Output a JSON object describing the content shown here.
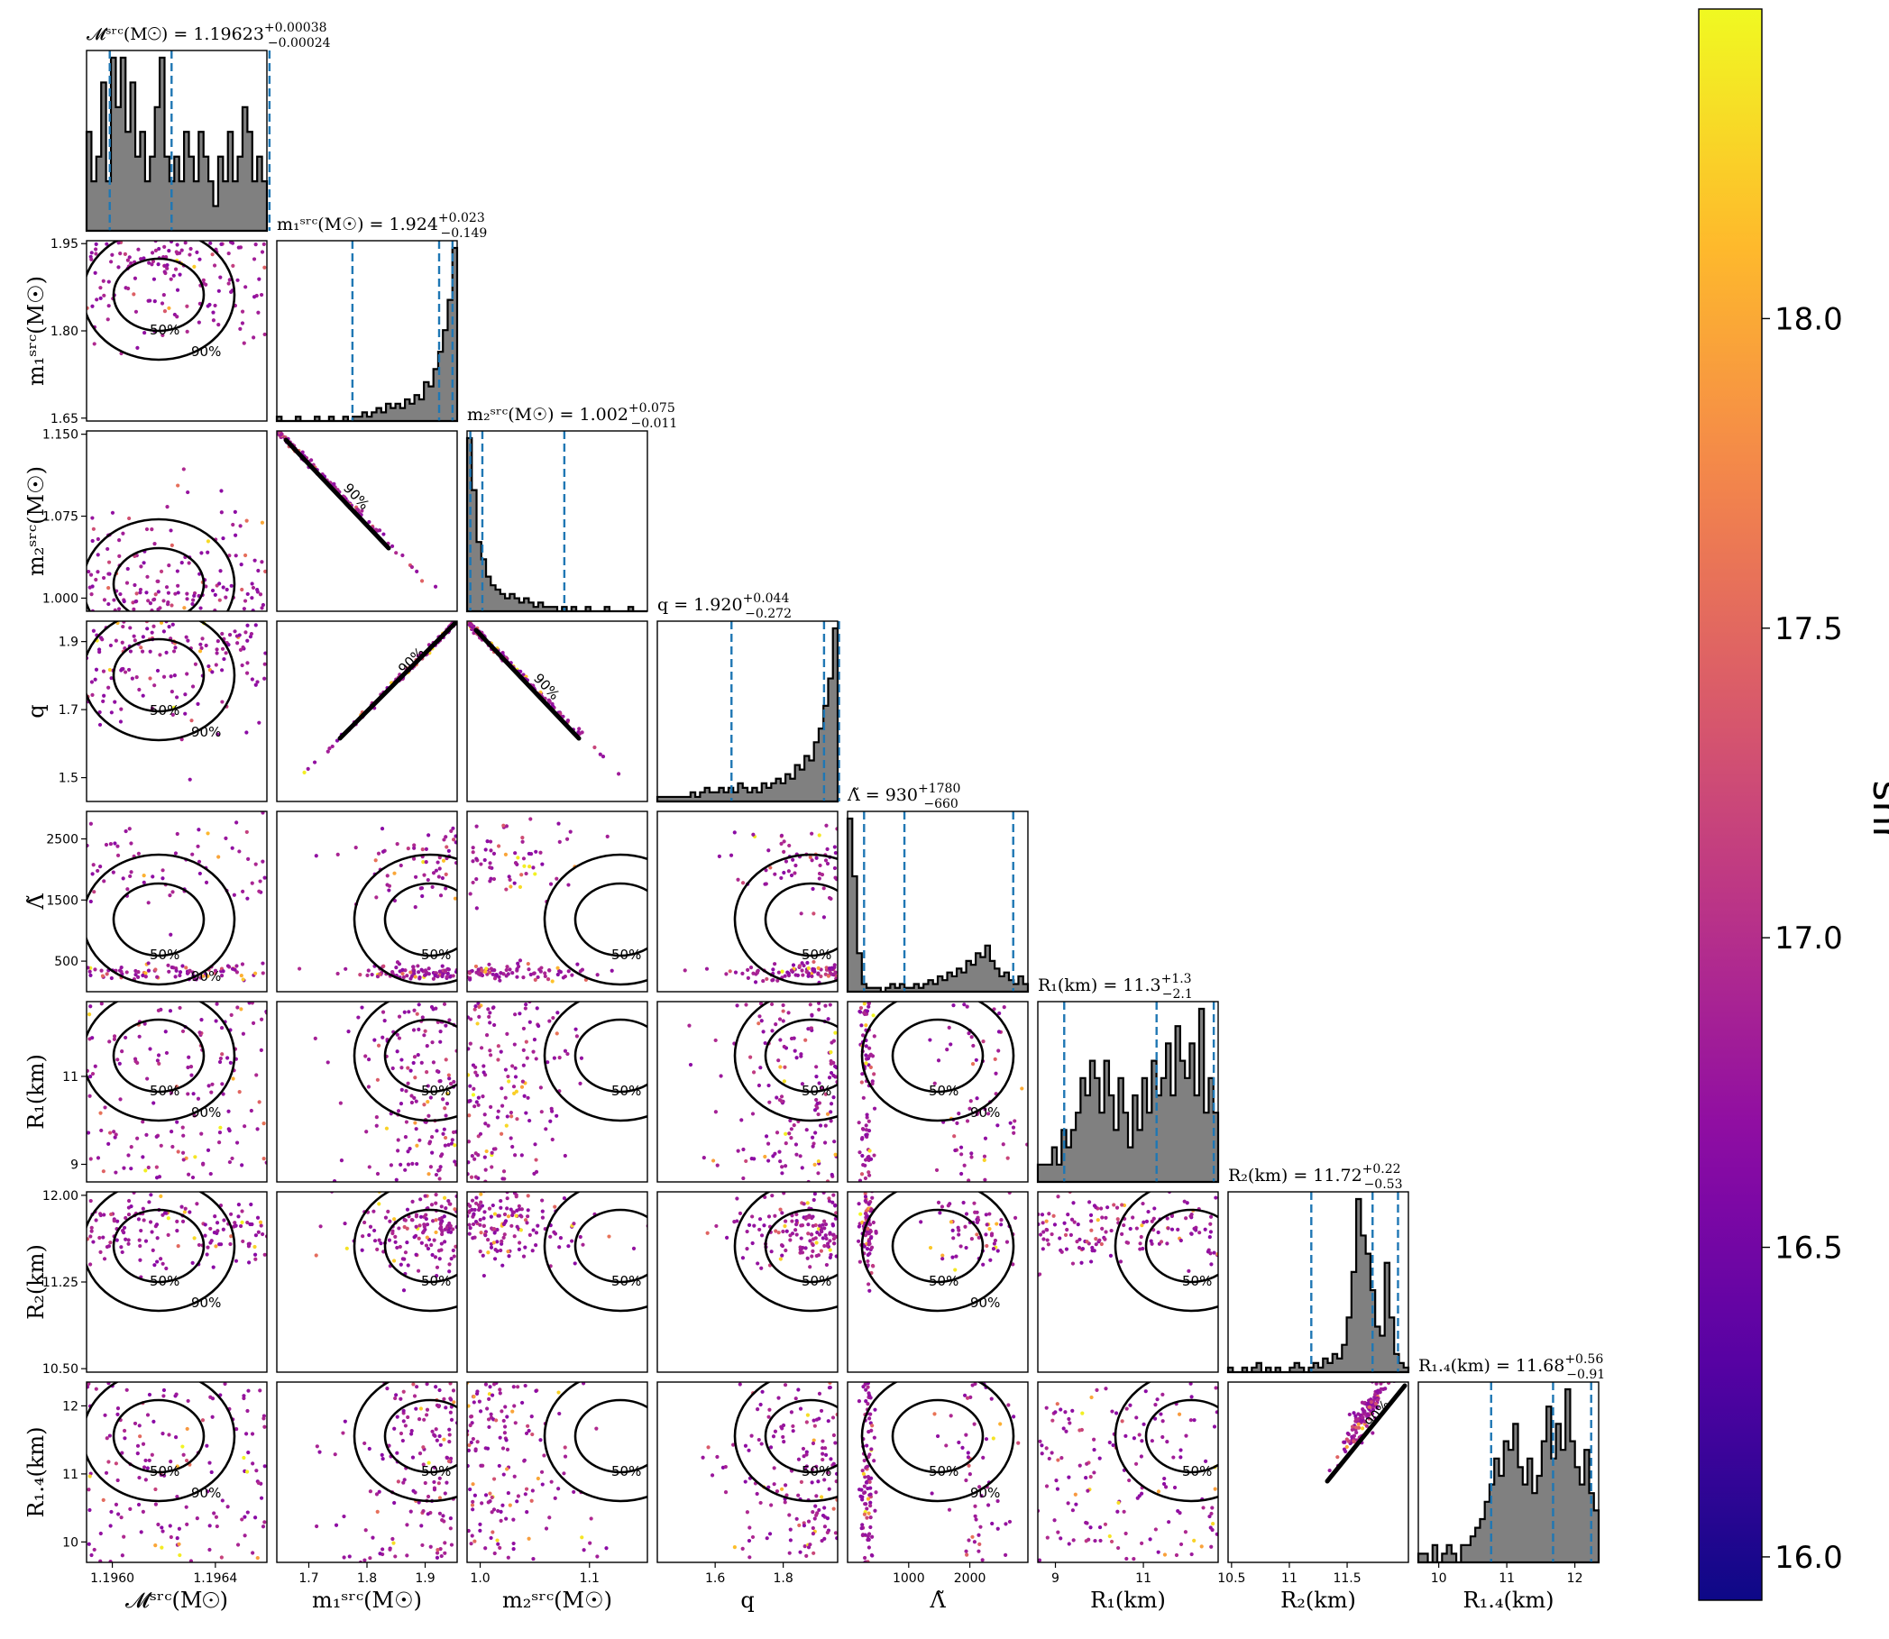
{
  "chart_data": {
    "type": "corner",
    "colorbar": {
      "label": "snr",
      "range": [
        15.93,
        18.5
      ],
      "ticks": [
        "16.0",
        "16.5",
        "17.0",
        "17.5",
        "18.0"
      ],
      "tick_values": [
        16.0,
        16.5,
        17.0,
        17.5,
        18.0
      ],
      "colormap": "plasma"
    },
    "contour_levels": [
      "50%",
      "90%"
    ],
    "params": [
      {
        "key": "mc",
        "title_name": "𝓜ˢʳᶜ(M☉)",
        "value": "1.19623",
        "plus": "+0.00038",
        "minus": "−0.00024",
        "axis_label": "𝓜ˢʳᶜ(M☉)",
        "range": [
          1.1959,
          1.1966
        ],
        "ticks": [
          1.196,
          1.1964
        ],
        "tick_labels": [
          "1.1960",
          "1.1964"
        ],
        "quantiles": [
          1.19599,
          1.19623,
          1.19661
        ],
        "hist": [
          4,
          2,
          3,
          6,
          2,
          7,
          5,
          7,
          4,
          6,
          3,
          4,
          2,
          3,
          5,
          7,
          3,
          2,
          3,
          2,
          4,
          3,
          2,
          4,
          3,
          2,
          1,
          3,
          2,
          4,
          2,
          3,
          5,
          4,
          2,
          3,
          2
        ],
        "hist_dark": "#2b2b2b"
      },
      {
        "key": "m1",
        "title_name": "m₁ˢʳᶜ(M☉)",
        "value": "1.924",
        "plus": "+0.023",
        "minus": "−0.149",
        "axis_label": "m₁ˢʳᶜ(M☉)",
        "range": [
          1.645,
          1.955
        ],
        "ticks": [
          1.7,
          1.8,
          1.9
        ],
        "tick_labels": [
          "1.7",
          "1.8",
          "1.9"
        ],
        "ytick_values": [
          1.65,
          1.8,
          1.95
        ],
        "ytick_labels": [
          "1.65",
          "1.80",
          "1.95"
        ],
        "quantiles": [
          1.775,
          1.924,
          1.947
        ],
        "hist": [
          1,
          0,
          0,
          0,
          1,
          0,
          0,
          0,
          1,
          0,
          0,
          1,
          0,
          0,
          1,
          0,
          1,
          1,
          2,
          1,
          2,
          3,
          2,
          4,
          3,
          4,
          3,
          5,
          4,
          6,
          5,
          9,
          8,
          12,
          16,
          21,
          28,
          40
        ]
      },
      {
        "key": "m2",
        "title_name": "m₂ˢʳᶜ(M☉)",
        "value": "1.002",
        "plus": "+0.075",
        "minus": "−0.011",
        "axis_label": "m₂ˢʳᶜ(M☉)",
        "range": [
          0.988,
          1.153
        ],
        "ticks": [
          1.0,
          1.1
        ],
        "tick_labels": [
          "1.0",
          "1.1"
        ],
        "ytick_values": [
          1.0,
          1.075,
          1.15
        ],
        "ytick_labels": [
          "1.000",
          "1.075",
          "1.150"
        ],
        "quantiles": [
          0.991,
          1.002,
          1.077
        ],
        "hist": [
          40,
          28,
          16,
          12,
          8,
          6,
          5,
          4,
          3,
          4,
          3,
          2,
          3,
          2,
          1,
          2,
          1,
          1,
          1,
          0,
          1,
          0,
          1,
          0,
          0,
          1,
          0,
          0,
          0,
          1,
          0,
          0,
          0,
          0,
          1,
          0,
          0,
          0
        ]
      },
      {
        "key": "q",
        "title_name": "q",
        "value": "1.920",
        "plus": "+0.044",
        "minus": "−0.272",
        "axis_label": "q",
        "range": [
          1.43,
          1.96
        ],
        "ticks": [
          1.6,
          1.8
        ],
        "tick_labels": [
          "1.6",
          "1.8"
        ],
        "ytick_values": [
          1.5,
          1.7,
          1.9
        ],
        "ytick_labels": [
          "1.5",
          "1.7",
          "1.9"
        ],
        "quantiles": [
          1.648,
          1.92,
          1.964
        ],
        "hist": [
          1,
          1,
          1,
          1,
          1,
          1,
          1,
          2,
          1,
          2,
          3,
          2,
          2,
          3,
          2,
          3,
          2,
          4,
          3,
          2,
          3,
          2,
          4,
          3,
          4,
          5,
          4,
          6,
          5,
          8,
          7,
          10,
          9,
          13,
          16,
          21,
          27,
          38
        ]
      },
      {
        "key": "lt",
        "title_name": "Λ̃",
        "value": "930",
        "plus": "+1780",
        "minus": "−660",
        "axis_label": "Λ̃",
        "range": [
          0,
          2950
        ],
        "ticks": [
          1000,
          2000
        ],
        "tick_labels": [
          "1000",
          "2000"
        ],
        "ytick_values": [
          500,
          1500,
          2500
        ],
        "ytick_labels": [
          "500",
          "1500",
          "2500"
        ],
        "quantiles": [
          270,
          930,
          2710
        ],
        "hist": [
          45,
          30,
          10,
          2,
          1,
          1,
          1,
          0,
          1,
          2,
          1,
          2,
          1,
          1,
          2,
          1,
          2,
          3,
          2,
          4,
          3,
          5,
          4,
          6,
          5,
          8,
          7,
          10,
          9,
          12,
          8,
          6,
          4,
          5,
          3,
          2,
          4,
          2
        ]
      },
      {
        "key": "r1",
        "title_name": "R₁(km)",
        "value": "11.3",
        "plus": "+1.3",
        "minus": "−2.1",
        "axis_label": "R₁(km)",
        "range": [
          8.6,
          12.7
        ],
        "ticks": [
          9,
          11
        ],
        "tick_labels": [
          "9",
          "11"
        ],
        "ytick_values": [
          9,
          11
        ],
        "ytick_labels": [
          "9",
          "11"
        ],
        "quantiles": [
          9.2,
          11.3,
          12.6
        ],
        "hist": [
          1,
          1,
          1,
          2,
          1,
          3,
          2,
          3,
          4,
          6,
          5,
          7,
          6,
          4,
          7,
          5,
          3,
          6,
          4,
          2,
          5,
          3,
          6,
          4,
          7,
          5,
          6,
          8,
          5,
          9,
          7,
          6,
          8,
          5,
          10,
          4,
          6,
          4
        ]
      },
      {
        "key": "r2",
        "title_name": "R₂(km)",
        "value": "11.72",
        "plus": "+0.22",
        "minus": "−0.53",
        "axis_label": "R₂(km)",
        "range": [
          10.47,
          12.03
        ],
        "ticks": [
          10.5,
          11.0,
          11.5
        ],
        "tick_labels": [
          "10.5",
          "11",
          "11.5"
        ],
        "ytick_values": [
          10.5,
          11.25,
          12.0
        ],
        "ytick_labels": [
          "10.50",
          "11.25",
          "12.00"
        ],
        "quantiles": [
          11.19,
          11.72,
          11.94
        ],
        "hist": [
          1,
          0,
          0,
          1,
          0,
          1,
          2,
          0,
          1,
          0,
          1,
          0,
          0,
          1,
          2,
          1,
          0,
          1,
          2,
          1,
          3,
          2,
          4,
          3,
          6,
          12,
          22,
          38,
          30,
          26,
          18,
          10,
          8,
          24,
          12,
          4,
          2,
          1
        ]
      },
      {
        "key": "r14",
        "title_name": "R₁.₄(km)",
        "value": "11.68",
        "plus": "+0.56",
        "minus": "−0.91",
        "axis_label": "R₁.₄(km)",
        "range": [
          9.7,
          12.35
        ],
        "ticks": [
          10,
          11,
          12
        ],
        "tick_labels": [
          "10",
          "11",
          "12"
        ],
        "ytick_values": [
          10,
          11,
          12
        ],
        "ytick_labels": [
          "10",
          "11",
          "12"
        ],
        "quantiles": [
          10.77,
          11.68,
          12.24
        ],
        "hist": [
          1,
          1,
          0,
          2,
          0,
          1,
          2,
          1,
          0,
          2,
          2,
          3,
          4,
          5,
          7,
          9,
          12,
          10,
          14,
          13,
          16,
          11,
          9,
          12,
          8,
          10,
          14,
          18,
          12,
          16,
          13,
          20,
          14,
          11,
          9,
          13,
          8,
          6
        ]
      }
    ]
  }
}
